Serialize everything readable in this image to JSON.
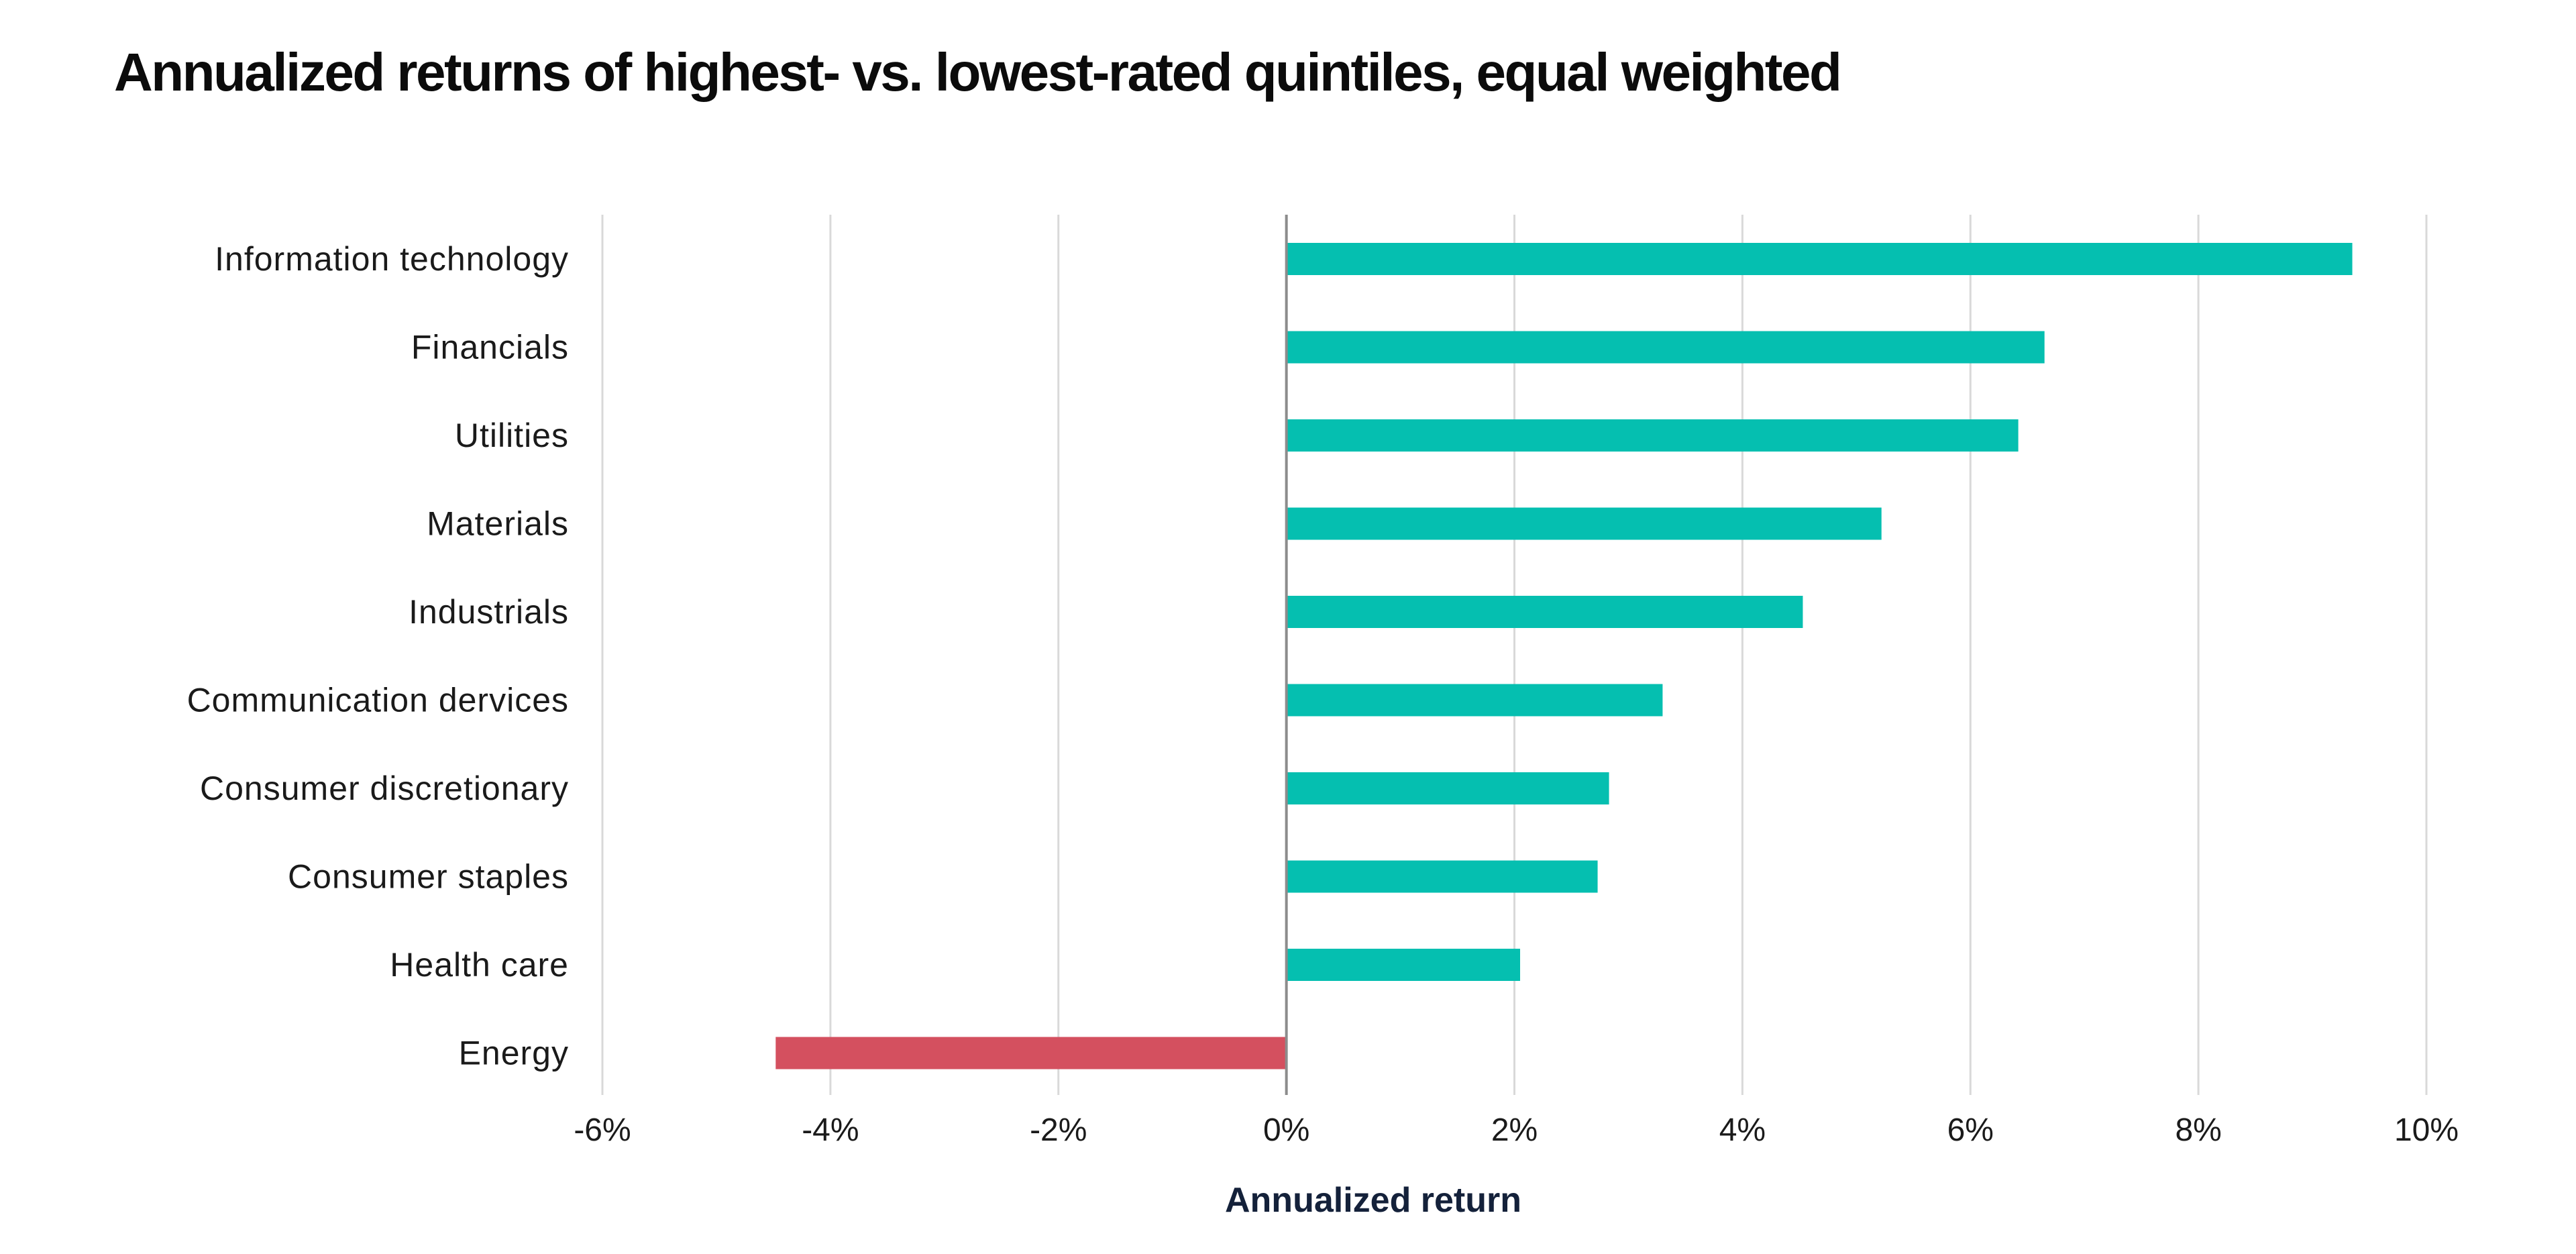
{
  "chart_data": {
    "type": "bar",
    "orientation": "horizontal",
    "title": "Annualized returns of highest- vs. lowest-rated quintiles, equal weighted",
    "xlabel": "Annualized return",
    "ylabel": "",
    "xlim": [
      -6,
      10
    ],
    "x_ticks": [
      -6,
      -4,
      -2,
      0,
      2,
      4,
      6,
      8,
      10
    ],
    "x_tick_labels": [
      "-6%",
      "-4%",
      "-2%",
      "0%",
      "2%",
      "4%",
      "6%",
      "8%",
      "10%"
    ],
    "grid": "vertical",
    "categories": [
      "Information technology",
      "Financials",
      "Utilities",
      "Materials",
      "Industrials",
      "Communication dervices",
      "Consumer discretionary",
      "Consumer staples",
      "Health care",
      "Energy"
    ],
    "values": [
      9.35,
      6.65,
      6.42,
      5.22,
      4.53,
      3.3,
      2.83,
      2.73,
      2.05,
      -4.48
    ],
    "colors": {
      "positive": "#05bfb0",
      "negative": "#d4505f"
    }
  }
}
